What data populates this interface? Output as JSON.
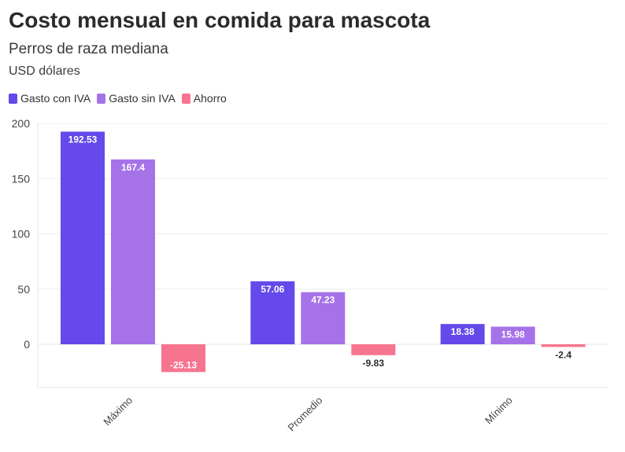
{
  "chart_data": {
    "type": "bar",
    "title": "Costo mensual en comida para mascota",
    "subtitle": "Perros de raza mediana",
    "unit_label": "USD dólares",
    "categories": [
      "Máximo",
      "Promedio",
      "Mínimo"
    ],
    "series": [
      {
        "name": "Gasto con IVA",
        "color": "#6549ea",
        "values": [
          192.53,
          57.06,
          18.38
        ]
      },
      {
        "name": "Gasto sin IVA",
        "color": "#a672e8",
        "values": [
          167.4,
          47.23,
          15.98
        ]
      },
      {
        "name": "Ahorro",
        "color": "#f7748f",
        "values": [
          -25.13,
          -9.83,
          -2.4
        ]
      }
    ],
    "y_ticks": [
      "200",
      "150",
      "100",
      "50",
      "0"
    ],
    "ylim": [
      -40,
      200
    ],
    "grid": true,
    "legend_position": "top-left"
  }
}
